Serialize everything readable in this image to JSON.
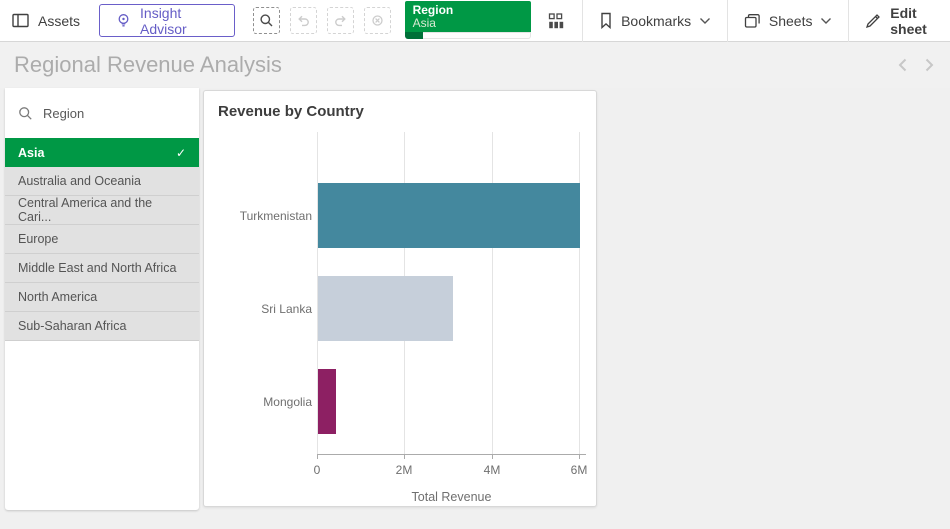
{
  "toolbar": {
    "assets_label": "Assets",
    "insight_advisor_label": "Insight Advisor",
    "bookmarks_label": "Bookmarks",
    "sheets_label": "Sheets",
    "edit_sheet_label": "Edit sheet",
    "selection_chip": {
      "field": "Region",
      "value": "Asia"
    },
    "icons": [
      "assets-panel-icon",
      "lightbulb-icon",
      "smart-search-icon",
      "step-back-icon",
      "step-forward-icon",
      "clear-selections-icon",
      "app-overview-icon",
      "bookmark-icon",
      "sheets-icon",
      "pencil-icon",
      "chevron-down-icon"
    ]
  },
  "sheet_header": {
    "title": "Regional Revenue Analysis"
  },
  "filter_panel": {
    "field_label": "Region",
    "items": [
      {
        "label": "Asia",
        "state": "selected"
      },
      {
        "label": "Australia and Oceania",
        "state": "alternative"
      },
      {
        "label": "Central America and the Cari...",
        "state": "alternative"
      },
      {
        "label": "Europe",
        "state": "alternative"
      },
      {
        "label": "Middle East and North Africa",
        "state": "alternative"
      },
      {
        "label": "North America",
        "state": "alternative"
      },
      {
        "label": "Sub-Saharan Africa",
        "state": "alternative"
      }
    ]
  },
  "chart_data": {
    "type": "bar",
    "orientation": "horizontal",
    "title": "Revenue by Country",
    "categories": [
      "Turkmenistan",
      "Sri Lanka",
      "Mongolia"
    ],
    "values": [
      6000000,
      3100000,
      410000
    ],
    "bar_colors": [
      "#44889e",
      "#c6cfda",
      "#8d2063"
    ],
    "xlabel": "Total Revenue",
    "ylabel": "",
    "xticks": [
      0,
      2000000,
      4000000,
      6000000
    ],
    "xtick_labels": [
      "0",
      "2M",
      "4M",
      "6M"
    ],
    "xlim": [
      0,
      6160000
    ],
    "grid": true,
    "legend": false
  },
  "colors": {
    "selection_green": "#009845",
    "selection_green_dark": "#007038",
    "insight_advisor_purple": "#655dc6",
    "bar_teal": "#44889e",
    "bar_light_blue": "#c6cfda",
    "bar_magenta": "#8d2063",
    "page_background": "#f0f0f0"
  }
}
